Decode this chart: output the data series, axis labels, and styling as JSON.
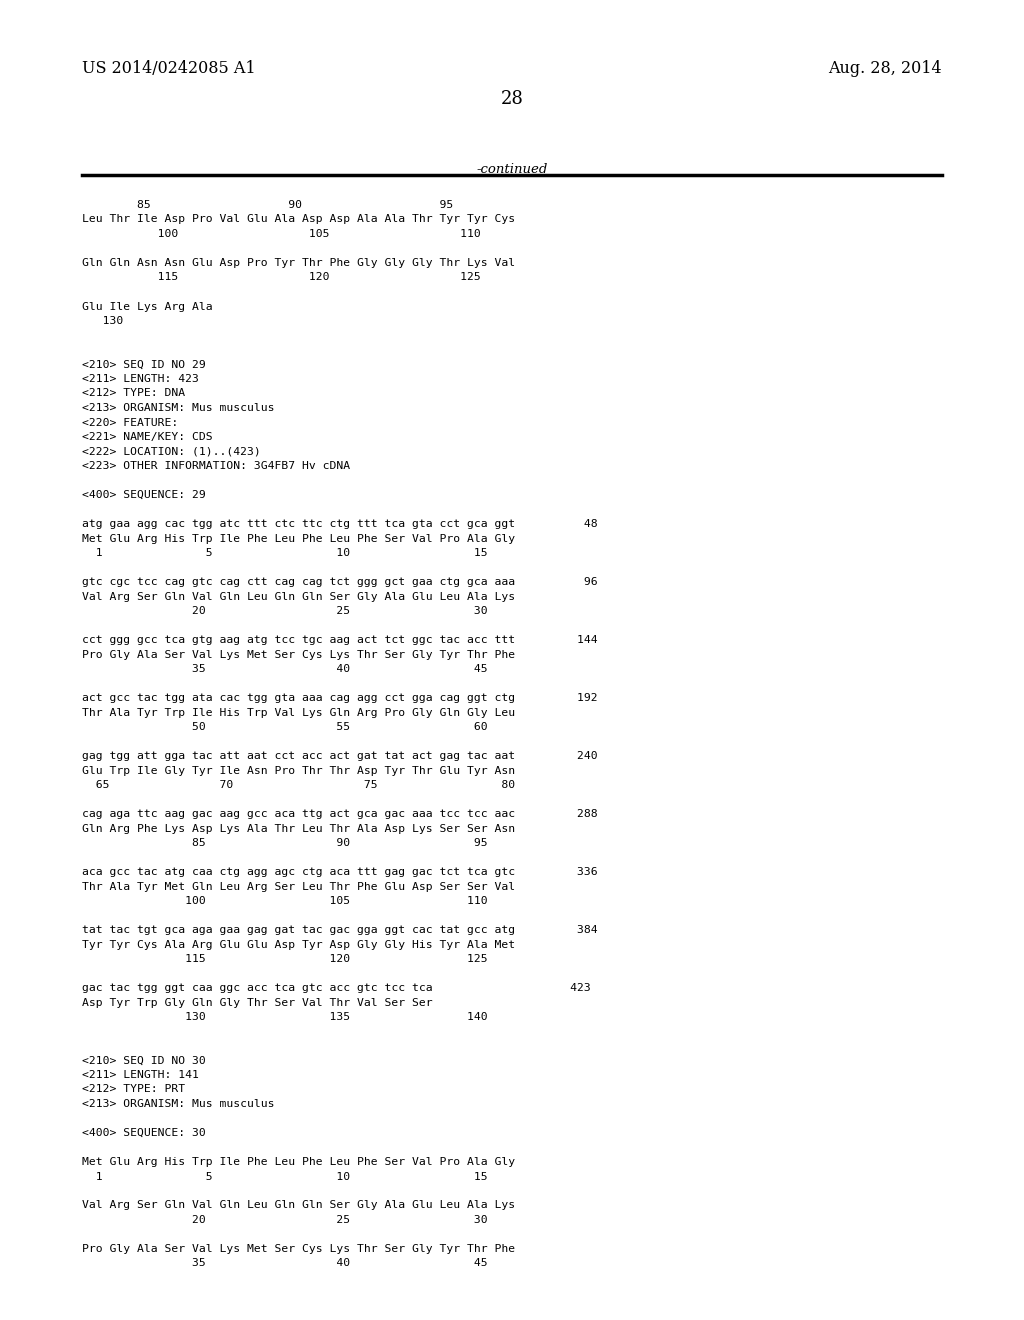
{
  "background_color": "#ffffff",
  "header_left": "US 2014/0242085 A1",
  "header_right": "Aug. 28, 2014",
  "page_number": "28",
  "continued_text": "-continued",
  "mono_size": 8.2,
  "header_size": 11.5,
  "page_num_size": 13,
  "content_lines": [
    "        85                    90                    95",
    "Leu Thr Ile Asp Pro Val Glu Ala Asp Asp Ala Ala Thr Tyr Tyr Cys",
    "           100                   105                   110",
    "",
    "Gln Gln Asn Asn Glu Asp Pro Tyr Thr Phe Gly Gly Gly Thr Lys Val",
    "           115                   120                   125",
    "",
    "Glu Ile Lys Arg Ala",
    "   130",
    "",
    "",
    "<210> SEQ ID NO 29",
    "<211> LENGTH: 423",
    "<212> TYPE: DNA",
    "<213> ORGANISM: Mus musculus",
    "<220> FEATURE:",
    "<221> NAME/KEY: CDS",
    "<222> LOCATION: (1)..(423)",
    "<223> OTHER INFORMATION: 3G4FB7 Hv cDNA",
    "",
    "<400> SEQUENCE: 29",
    "",
    "atg gaa agg cac tgg atc ttt ctc ttc ctg ttt tca gta cct gca ggt          48",
    "Met Glu Arg His Trp Ile Phe Leu Phe Leu Phe Ser Val Pro Ala Gly",
    "  1               5                  10                  15",
    "",
    "gtc cgc tcc cag gtc cag ctt cag cag tct ggg gct gaa ctg gca aaa          96",
    "Val Arg Ser Gln Val Gln Leu Gln Gln Ser Gly Ala Glu Leu Ala Lys",
    "                20                   25                  30",
    "",
    "cct ggg gcc tca gtg aag atg tcc tgc aag act tct ggc tac acc ttt         144",
    "Pro Gly Ala Ser Val Lys Met Ser Cys Lys Thr Ser Gly Tyr Thr Phe",
    "                35                   40                  45",
    "",
    "act gcc tac tgg ata cac tgg gta aaa cag agg cct gga cag ggt ctg         192",
    "Thr Ala Tyr Trp Ile His Trp Val Lys Gln Arg Pro Gly Gln Gly Leu",
    "                50                   55                  60",
    "",
    "gag tgg att gga tac att aat cct acc act gat tat act gag tac aat         240",
    "Glu Trp Ile Gly Tyr Ile Asn Pro Thr Thr Asp Tyr Thr Glu Tyr Asn",
    "  65                70                   75                  80",
    "",
    "cag aga ttc aag gac aag gcc aca ttg act gca gac aaa tcc tcc aac         288",
    "Gln Arg Phe Lys Asp Lys Ala Thr Leu Thr Ala Asp Lys Ser Ser Asn",
    "                85                   90                  95",
    "",
    "aca gcc tac atg caa ctg agg agc ctg aca ttt gag gac tct tca gtc         336",
    "Thr Ala Tyr Met Gln Leu Arg Ser Leu Thr Phe Glu Asp Ser Ser Val",
    "               100                  105                 110",
    "",
    "tat tac tgt gca aga gaa gag gat tac gac gga ggt cac tat gcc atg         384",
    "Tyr Tyr Cys Ala Arg Glu Glu Asp Tyr Asp Gly Gly His Tyr Ala Met",
    "               115                  120                 125",
    "",
    "gac tac tgg ggt caa ggc acc tca gtc acc gtc tcc tca                    423",
    "Asp Tyr Trp Gly Gln Gly Thr Ser Val Thr Val Ser Ser",
    "               130                  135                 140",
    "",
    "",
    "<210> SEQ ID NO 30",
    "<211> LENGTH: 141",
    "<212> TYPE: PRT",
    "<213> ORGANISM: Mus musculus",
    "",
    "<400> SEQUENCE: 30",
    "",
    "Met Glu Arg His Trp Ile Phe Leu Phe Leu Phe Ser Val Pro Ala Gly",
    "  1               5                  10                  15",
    "",
    "Val Arg Ser Gln Val Gln Leu Gln Gln Ser Gly Ala Glu Leu Ala Lys",
    "                20                   25                  30",
    "",
    "Pro Gly Ala Ser Val Lys Met Ser Cys Lys Thr Ser Gly Tyr Thr Phe",
    "                35                   40                  45"
  ]
}
